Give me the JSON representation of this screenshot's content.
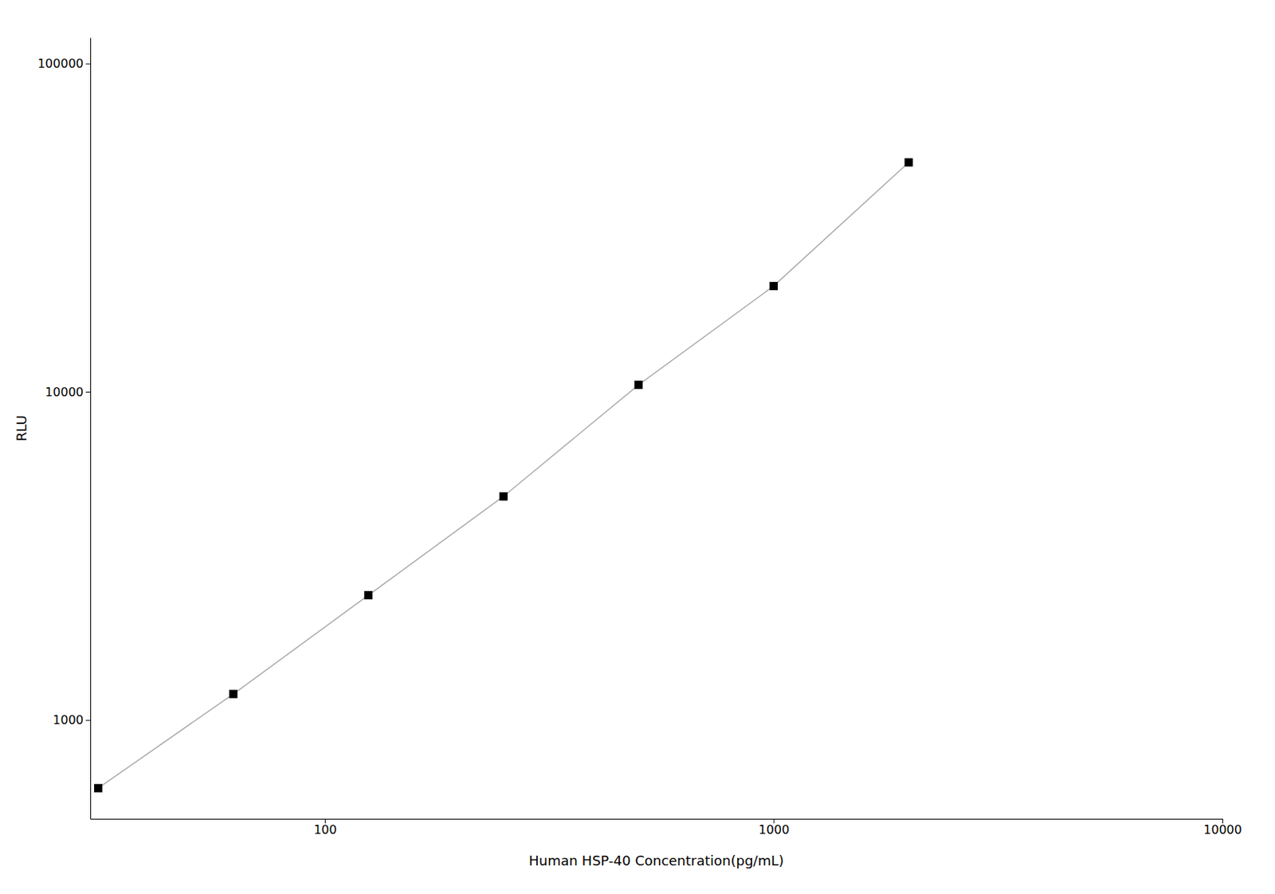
{
  "chart_data": {
    "type": "line",
    "x": [
      31.25,
      62.5,
      125,
      250,
      500,
      1000,
      2000
    ],
    "values": [
      620,
      1200,
      2400,
      4800,
      10500,
      21000,
      50000
    ],
    "xlabel": "Human HSP-40 Concentration(pg/mL)",
    "ylabel": "RLU",
    "xlim": [
      30,
      10000
    ],
    "ylim": [
      500,
      120000
    ],
    "xticks": [
      100,
      1000,
      10000
    ],
    "yticks": [
      1000,
      10000,
      100000
    ],
    "log": true,
    "grid": false,
    "color": "#aaaaaa",
    "colors": [
      "#000000",
      "#000000",
      "#000000",
      "#000000",
      "#000000",
      "#000000",
      "#000000"
    ],
    "marker": "square",
    "line_style": "solid"
  }
}
